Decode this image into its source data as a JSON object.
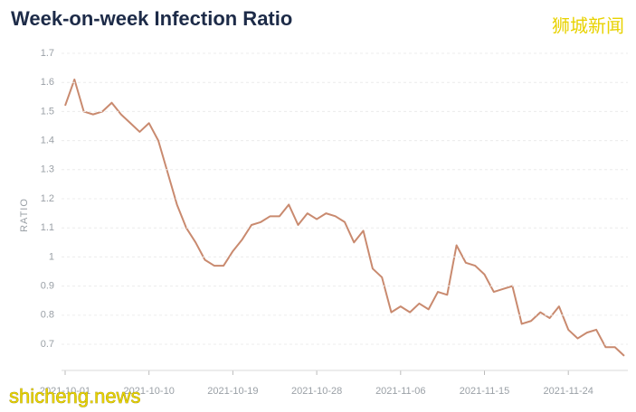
{
  "chart_data": {
    "type": "line",
    "title": "Week-on-week Infection Ratio",
    "ylabel": "RATIO",
    "watermarks": [
      "狮城新闻",
      "shicheng.news"
    ],
    "categories": [
      "2021-10-01",
      null,
      null,
      null,
      null,
      null,
      null,
      null,
      null,
      "2021-10-10",
      null,
      null,
      null,
      null,
      null,
      null,
      null,
      null,
      "2021-10-19",
      null,
      null,
      null,
      null,
      null,
      null,
      null,
      null,
      "2021-10-28",
      null,
      null,
      null,
      null,
      null,
      null,
      null,
      null,
      "2021-11-06",
      null,
      null,
      null,
      null,
      null,
      null,
      null,
      null,
      "2021-11-15",
      null,
      null,
      null,
      null,
      null,
      null,
      null,
      null,
      "2021-11-24",
      null,
      null,
      null,
      null,
      null,
      null
    ],
    "series": [
      {
        "name": "Ratio",
        "color": "#c98a6f",
        "values": [
          1.52,
          1.61,
          1.5,
          1.49,
          1.5,
          1.53,
          1.49,
          1.46,
          1.43,
          1.46,
          1.4,
          1.29,
          1.18,
          1.1,
          1.05,
          0.99,
          0.97,
          0.97,
          1.02,
          1.06,
          1.11,
          1.12,
          1.14,
          1.14,
          1.18,
          1.11,
          1.15,
          1.13,
          1.15,
          1.14,
          1.12,
          1.05,
          1.09,
          0.96,
          0.93,
          0.81,
          0.83,
          0.81,
          0.84,
          0.82,
          0.88,
          0.87,
          1.04,
          0.98,
          0.97,
          0.94,
          0.88,
          0.89,
          0.9,
          0.77,
          0.78,
          0.81,
          0.79,
          0.83,
          0.75,
          0.72,
          0.74,
          0.75,
          0.69,
          0.69,
          0.66
        ]
      }
    ],
    "ylim": [
      0.61,
      1.7
    ],
    "yticks": [
      0.7,
      0.8,
      0.9,
      1,
      1.1,
      1.2,
      1.3,
      1.4,
      1.5,
      1.6,
      1.7
    ],
    "grid": true
  }
}
